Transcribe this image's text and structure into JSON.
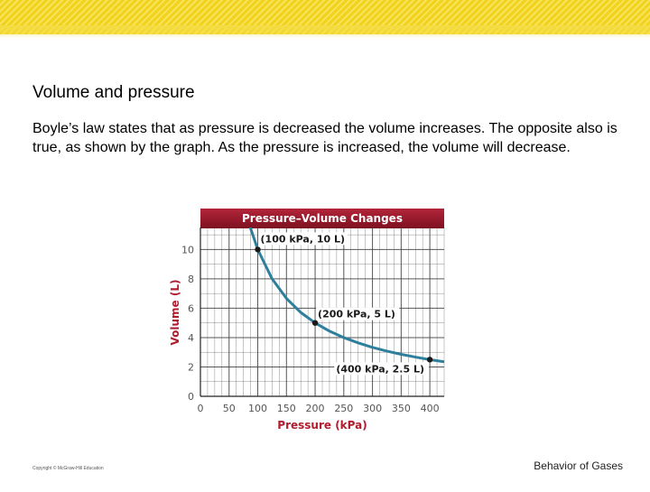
{
  "slide": {
    "title": "Volume and pressure",
    "body": "Boyle’s law states that as pressure is decreased the volume increases. The opposite also is true, as shown by the graph. As the pressure is increased, the volume will decrease.",
    "footer_left": "Copyright © McGraw-Hill Education",
    "footer_right": "Behavior of Gases"
  },
  "colors": {
    "title_banner": "#9e1a2c",
    "curve": "#2e7f9b",
    "grid": "#444444",
    "axis_label": "#b01c2e",
    "tick": "#555555",
    "point": "#1a1a1a"
  },
  "chart_data": {
    "type": "line",
    "title": "Pressure–Volume Changes",
    "xlabel": "Pressure (kPa)",
    "ylabel": "Volume (L)",
    "xlim": [
      0,
      425
    ],
    "ylim": [
      0,
      11.5
    ],
    "x_ticks": [
      0,
      50,
      100,
      150,
      200,
      250,
      300,
      350,
      400
    ],
    "y_ticks": [
      0,
      2,
      4,
      6,
      8,
      10
    ],
    "grid": true,
    "series": [
      {
        "x": [
          87,
          100,
          125,
          150,
          175,
          200,
          225,
          250,
          275,
          300,
          325,
          350,
          375,
          400,
          425
        ],
        "values": [
          11.5,
          10,
          8,
          6.67,
          5.71,
          5,
          4.44,
          4,
          3.64,
          3.33,
          3.08,
          2.86,
          2.67,
          2.5,
          2.35
        ]
      }
    ],
    "points": [
      {
        "x": 100,
        "y": 10,
        "label": "(100 kPa, 10 L)"
      },
      {
        "x": 200,
        "y": 5,
        "label": "(200 kPa, 5 L)"
      },
      {
        "x": 400,
        "y": 2.5,
        "label": "(400 kPa, 2.5 L)"
      }
    ]
  }
}
